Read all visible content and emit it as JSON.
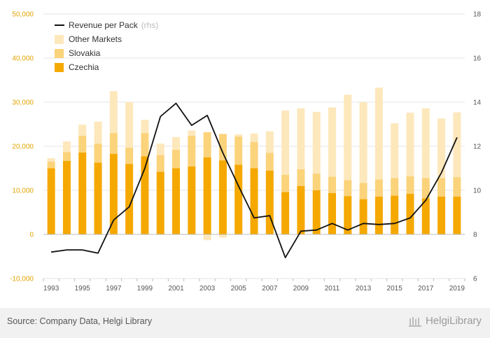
{
  "chart_data": {
    "type": "bar",
    "stacked": true,
    "categories": [
      "1993",
      "1994",
      "1995",
      "1996",
      "1997",
      "1998",
      "1999",
      "2000",
      "2001",
      "2002",
      "2003",
      "2004",
      "2005",
      "2006",
      "2007",
      "2008",
      "2009",
      "2010",
      "2011",
      "2012",
      "2013",
      "2014",
      "2015",
      "2016",
      "2017",
      "2018",
      "2019"
    ],
    "x_tick_labels": [
      "1993",
      "1995",
      "1997",
      "1999",
      "2001",
      "2003",
      "2005",
      "2007",
      "2009",
      "2011",
      "2013",
      "2015",
      "2017",
      "2019"
    ],
    "series": [
      {
        "name": "Czechia",
        "color": "#f5a800",
        "values": [
          15000,
          16700,
          18600,
          16300,
          18300,
          16000,
          17700,
          14200,
          15000,
          15400,
          17500,
          16800,
          15800,
          15000,
          14500,
          9600,
          11000,
          10000,
          9400,
          8700,
          8000,
          8600,
          8800,
          9200,
          8200,
          8600,
          8600
        ]
      },
      {
        "name": "Slovakia",
        "color": "#fbd37a",
        "values": [
          1500,
          2000,
          3800,
          4300,
          4700,
          3700,
          5300,
          3800,
          4200,
          7000,
          5700,
          6000,
          6400,
          6000,
          4000,
          3900,
          3800,
          3800,
          3700,
          3600,
          3700,
          3900,
          4000,
          4000,
          4600,
          4200,
          4400
        ]
      },
      {
        "name": "Other Markets",
        "color": "#fde8bc",
        "values": [
          800,
          2400,
          2500,
          5000,
          9500,
          10300,
          3000,
          2600,
          2900,
          1200,
          -1300,
          -700,
          500,
          1900,
          4900,
          14600,
          13800,
          14000,
          15700,
          19400,
          18300,
          20800,
          12400,
          14400,
          15800,
          13500,
          14700
        ]
      }
    ],
    "line_series": {
      "name": "Revenue per Pack",
      "axis": "right",
      "color": "#111111",
      "values": [
        7.2,
        7.3,
        7.3,
        7.15,
        8.65,
        9.25,
        11.0,
        13.35,
        13.95,
        12.95,
        13.4,
        11.7,
        10.2,
        8.75,
        8.85,
        6.95,
        8.15,
        8.2,
        8.5,
        8.2,
        8.5,
        8.45,
        8.5,
        8.75,
        9.55,
        10.8,
        12.4
      ]
    },
    "legend": [
      "Revenue per Pack",
      "Other Markets",
      "Slovakia",
      "Czechia"
    ],
    "legend_rhs_label": "(rhs)",
    "legend_position": "top-left",
    "ylim_left": [
      -10000,
      50000
    ],
    "y_ticks_left": [
      "-10,000",
      "0",
      "10,000",
      "20,000",
      "30,000",
      "40,000",
      "50,000"
    ],
    "ylim_right": [
      6,
      18
    ],
    "y_ticks_right": [
      "6",
      "8",
      "10",
      "12",
      "14",
      "16",
      "18"
    ],
    "grid": "horizontal"
  },
  "footer": {
    "source": "Source: Company Data, Helgi Library",
    "brand": "HelgiLibrary"
  }
}
